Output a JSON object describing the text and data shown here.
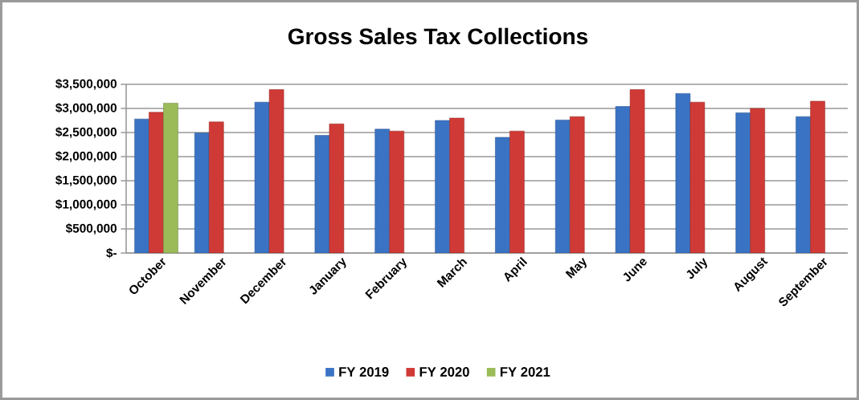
{
  "chart_data": {
    "type": "bar",
    "title": "Gross Sales Tax Collections",
    "categories": [
      "October",
      "November",
      "December",
      "January",
      "February",
      "March",
      "April",
      "May",
      "June",
      "July",
      "August",
      "September"
    ],
    "series": [
      {
        "name": "FY 2019",
        "color": "#3a73c4",
        "values": [
          2780000,
          2490000,
          3130000,
          2440000,
          2570000,
          2750000,
          2400000,
          2760000,
          3040000,
          3310000,
          2910000,
          2830000
        ]
      },
      {
        "name": "FY 2020",
        "color": "#d03a36",
        "values": [
          2920000,
          2720000,
          3390000,
          2680000,
          2530000,
          2800000,
          2530000,
          2830000,
          3390000,
          3130000,
          3000000,
          3150000
        ]
      },
      {
        "name": "FY 2021",
        "color": "#9bbb59",
        "values": [
          3110000,
          null,
          null,
          null,
          null,
          null,
          null,
          null,
          null,
          null,
          null,
          null
        ]
      }
    ],
    "ylim": [
      0,
      3500000
    ],
    "yticks": [
      {
        "value": 0,
        "label": "$-"
      },
      {
        "value": 500000,
        "label": "$500,000"
      },
      {
        "value": 1000000,
        "label": "$1,000,000"
      },
      {
        "value": 1500000,
        "label": "$1,500,000"
      },
      {
        "value": 2000000,
        "label": "$2,000,000"
      },
      {
        "value": 2500000,
        "label": "$2,500,000"
      },
      {
        "value": 3000000,
        "label": "$3,000,000"
      },
      {
        "value": 3500000,
        "label": "$3,500,000"
      }
    ],
    "grid": "y",
    "legend": "bottom"
  }
}
